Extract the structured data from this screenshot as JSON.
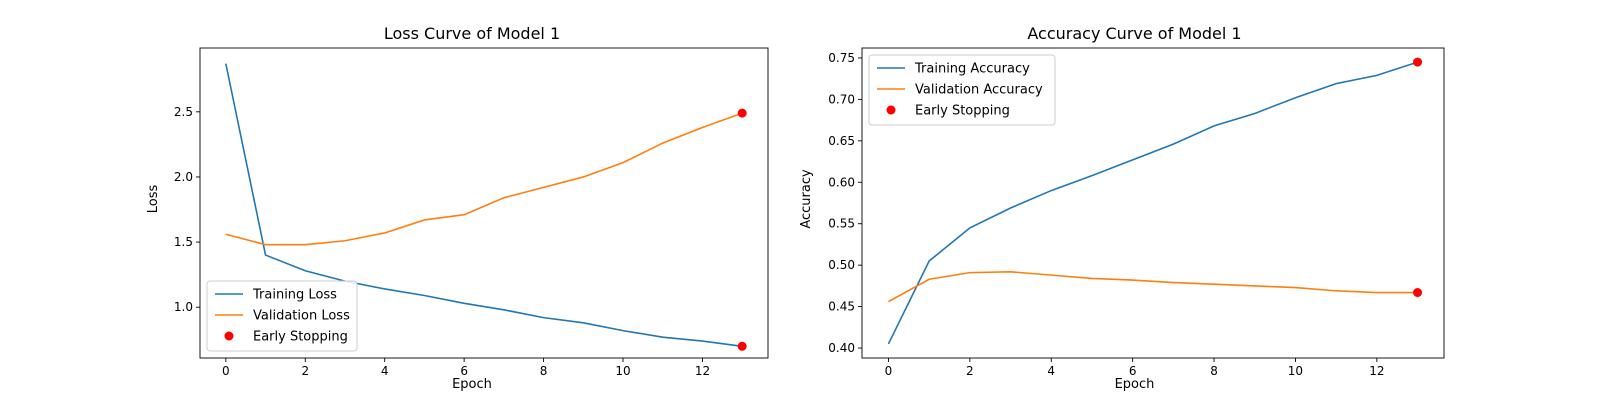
{
  "chart_data": [
    {
      "type": "line",
      "title": "Loss Curve of Model 1",
      "xlabel": "Epoch",
      "ylabel": "Loss",
      "xlim": [
        -0.65,
        13.65
      ],
      "ylim": [
        0.61,
        2.99
      ],
      "xticks": [
        0,
        2,
        4,
        6,
        8,
        10,
        12
      ],
      "yticks": [
        1.0,
        1.5,
        2.0,
        2.5
      ],
      "ytick_labels": [
        "1.0",
        "1.5",
        "2.0",
        "2.5"
      ],
      "grid": false,
      "legend_position": "lower-left",
      "x": [
        0,
        1,
        2,
        3,
        4,
        5,
        6,
        7,
        8,
        9,
        10,
        11,
        12,
        13
      ],
      "series": [
        {
          "name": "Training Loss",
          "color": "#1f77b4",
          "values": [
            2.87,
            1.4,
            1.28,
            1.2,
            1.14,
            1.09,
            1.03,
            0.98,
            0.92,
            0.88,
            0.82,
            0.77,
            0.74,
            0.7
          ]
        },
        {
          "name": "Validation Loss",
          "color": "#ff7f0e",
          "values": [
            1.56,
            1.48,
            1.48,
            1.51,
            1.57,
            1.67,
            1.71,
            1.84,
            1.92,
            2.0,
            2.11,
            2.26,
            2.38,
            2.49
          ]
        }
      ],
      "markers": {
        "name": "Early Stopping",
        "color": "#ff0000",
        "points": [
          {
            "x": 13,
            "y": 0.7
          },
          {
            "x": 13,
            "y": 2.49
          }
        ]
      }
    },
    {
      "type": "line",
      "title": "Accuracy Curve of Model 1",
      "xlabel": "Epoch",
      "ylabel": "Accuracy",
      "xlim": [
        -0.65,
        13.65
      ],
      "ylim": [
        0.388,
        0.762
      ],
      "xticks": [
        0,
        2,
        4,
        6,
        8,
        10,
        12
      ],
      "yticks": [
        0.4,
        0.45,
        0.5,
        0.55,
        0.6,
        0.65,
        0.7,
        0.75
      ],
      "ytick_labels": [
        "0.40",
        "0.45",
        "0.50",
        "0.55",
        "0.60",
        "0.65",
        "0.70",
        "0.75"
      ],
      "grid": false,
      "legend_position": "upper-left",
      "x": [
        0,
        1,
        2,
        3,
        4,
        5,
        6,
        7,
        8,
        9,
        10,
        11,
        12,
        13
      ],
      "series": [
        {
          "name": "Training Accuracy",
          "color": "#1f77b4",
          "values": [
            0.405,
            0.505,
            0.545,
            0.569,
            0.59,
            0.608,
            0.627,
            0.646,
            0.668,
            0.683,
            0.702,
            0.719,
            0.729,
            0.745
          ]
        },
        {
          "name": "Validation Accuracy",
          "color": "#ff7f0e",
          "values": [
            0.456,
            0.483,
            0.491,
            0.492,
            0.488,
            0.484,
            0.482,
            0.479,
            0.477,
            0.475,
            0.473,
            0.469,
            0.467,
            0.467
          ]
        }
      ],
      "markers": {
        "name": "Early Stopping",
        "color": "#ff0000",
        "points": [
          {
            "x": 13,
            "y": 0.745
          },
          {
            "x": 13,
            "y": 0.467
          }
        ]
      }
    }
  ]
}
